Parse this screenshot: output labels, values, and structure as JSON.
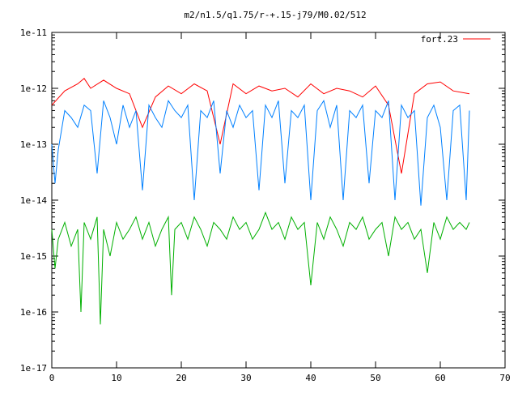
{
  "chart_data": {
    "type": "line",
    "title": "m2/n1.5/q1.75/r-+.15-j79/M0.02/512",
    "xlabel": "",
    "ylabel": "",
    "xlim": [
      0,
      70
    ],
    "ylim": [
      1e-17,
      1e-11
    ],
    "yscale": "log",
    "xticks": [
      0,
      10,
      20,
      30,
      40,
      50,
      60,
      70
    ],
    "xtick_labels": [
      "0",
      "10",
      "20",
      "30",
      "40",
      "50",
      "60",
      "70"
    ],
    "yticks": [
      1e-17,
      1e-16,
      1e-15,
      1e-14,
      1e-13,
      1e-12,
      1e-11
    ],
    "ytick_labels": [
      "1e-17",
      "1e-16",
      "1e-15",
      "1e-14",
      "1e-13",
      "1e-12",
      "1e-11"
    ],
    "grid": false,
    "legend": {
      "position": "top-right",
      "entries": [
        "fort.23"
      ]
    },
    "series": [
      {
        "name": "fort.23",
        "color": "#ff0000",
        "x": [
          0,
          2,
          4,
          5,
          6,
          8,
          10,
          12,
          14,
          16,
          18,
          20,
          22,
          24,
          26,
          28,
          30,
          32,
          34,
          36,
          38,
          40,
          42,
          44,
          46,
          48,
          50,
          52,
          54,
          56,
          58,
          60,
          62,
          64.5
        ],
        "y": [
          5e-13,
          9e-13,
          1.2e-12,
          1.5e-12,
          1e-12,
          1.4e-12,
          1e-12,
          8e-13,
          2e-13,
          7e-13,
          1.1e-12,
          8e-13,
          1.2e-12,
          9e-13,
          1e-13,
          1.2e-12,
          8e-13,
          1.1e-12,
          9e-13,
          1e-12,
          7e-13,
          1.2e-12,
          8e-13,
          1e-12,
          9e-13,
          7e-13,
          1.1e-12,
          5e-13,
          3e-14,
          8e-13,
          1.2e-12,
          1.3e-12,
          9e-13,
          8e-13
        ]
      },
      {
        "color": "#0080ff",
        "x": [
          0,
          0.5,
          1,
          2,
          3,
          4,
          5,
          6,
          7,
          8,
          9,
          10,
          11,
          12,
          13,
          14,
          15,
          16,
          17,
          18,
          19,
          20,
          21,
          22,
          23,
          24,
          25,
          26,
          27,
          28,
          29,
          30,
          31,
          32,
          33,
          34,
          35,
          36,
          37,
          38,
          39,
          40,
          41,
          42,
          43,
          44,
          45,
          46,
          47,
          48,
          49,
          50,
          51,
          52,
          53,
          54,
          55,
          56,
          57,
          58,
          59,
          60,
          61,
          62,
          63,
          64,
          64.5
        ],
        "y": [
          1e-13,
          2e-14,
          8e-14,
          4e-13,
          3e-13,
          2e-13,
          5e-13,
          4e-13,
          3e-14,
          6e-13,
          3e-13,
          1e-13,
          5e-13,
          2e-13,
          4e-13,
          1.5e-14,
          5e-13,
          3e-13,
          2e-13,
          6e-13,
          4e-13,
          3e-13,
          5e-13,
          1e-14,
          4e-13,
          3e-13,
          6e-13,
          3e-14,
          4e-13,
          2e-13,
          5e-13,
          3e-13,
          4e-13,
          1.5e-14,
          5e-13,
          3e-13,
          6e-13,
          2e-14,
          4e-13,
          3e-13,
          5e-13,
          1e-14,
          4e-13,
          6e-13,
          2e-13,
          5e-13,
          1e-14,
          4e-13,
          3e-13,
          5e-13,
          2e-14,
          4e-13,
          3e-13,
          6e-13,
          1e-14,
          5e-13,
          3e-13,
          4e-13,
          8e-15,
          3e-13,
          5e-13,
          2e-13,
          1e-14,
          4e-13,
          5e-13,
          1e-14,
          4e-13
        ]
      },
      {
        "color": "#00b000",
        "x": [
          0,
          0.5,
          1,
          2,
          3,
          4,
          4.5,
          5,
          6,
          7,
          7.5,
          8,
          9,
          10,
          11,
          12,
          13,
          14,
          15,
          16,
          17,
          18,
          18.5,
          19,
          20,
          21,
          22,
          23,
          24,
          25,
          26,
          27,
          28,
          29,
          30,
          31,
          32,
          33,
          34,
          35,
          36,
          37,
          38,
          39,
          40,
          41,
          42,
          43,
          44,
          45,
          46,
          47,
          48,
          49,
          50,
          51,
          52,
          53,
          54,
          55,
          56,
          57,
          58,
          59,
          60,
          61,
          62,
          63,
          64,
          64.5
        ],
        "y": [
          3e-15,
          6e-16,
          2e-15,
          4e-15,
          1.5e-15,
          3e-15,
          1e-16,
          4e-15,
          2e-15,
          5e-15,
          6e-17,
          3e-15,
          1e-15,
          4e-15,
          2e-15,
          3e-15,
          5e-15,
          2e-15,
          4e-15,
          1.5e-15,
          3e-15,
          5e-15,
          2e-16,
          3e-15,
          4e-15,
          2e-15,
          5e-15,
          3e-15,
          1.5e-15,
          4e-15,
          3e-15,
          2e-15,
          5e-15,
          3e-15,
          4e-15,
          2e-15,
          3e-15,
          6e-15,
          3e-15,
          4e-15,
          2e-15,
          5e-15,
          3e-15,
          4e-15,
          3e-16,
          4e-15,
          2e-15,
          5e-15,
          3e-15,
          1.5e-15,
          4e-15,
          3e-15,
          5e-15,
          2e-15,
          3e-15,
          4e-15,
          1e-15,
          5e-15,
          3e-15,
          4e-15,
          2e-15,
          3e-15,
          5e-16,
          4e-15,
          2e-15,
          5e-15,
          3e-15,
          4e-15,
          3e-15,
          4e-15
        ]
      }
    ]
  }
}
